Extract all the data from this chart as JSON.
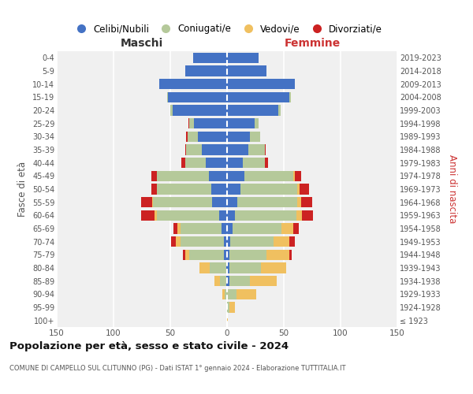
{
  "age_groups": [
    "100+",
    "95-99",
    "90-94",
    "85-89",
    "80-84",
    "75-79",
    "70-74",
    "65-69",
    "60-64",
    "55-59",
    "50-54",
    "45-49",
    "40-44",
    "35-39",
    "30-34",
    "25-29",
    "20-24",
    "15-19",
    "10-14",
    "5-9",
    "0-4"
  ],
  "birth_years": [
    "≤ 1923",
    "1924-1928",
    "1929-1933",
    "1934-1938",
    "1939-1943",
    "1944-1948",
    "1949-1953",
    "1954-1958",
    "1959-1963",
    "1964-1968",
    "1969-1973",
    "1974-1978",
    "1979-1983",
    "1984-1988",
    "1989-1993",
    "1994-1998",
    "1999-2003",
    "2004-2008",
    "2009-2013",
    "2014-2018",
    "2019-2023"
  ],
  "males": {
    "celibi": [
      0,
      0,
      0,
      1,
      1,
      3,
      3,
      5,
      7,
      13,
      14,
      16,
      19,
      22,
      26,
      29,
      48,
      52,
      60,
      37,
      30
    ],
    "coniugati": [
      0,
      0,
      2,
      5,
      14,
      30,
      38,
      36,
      55,
      52,
      48,
      46,
      18,
      14,
      9,
      4,
      2,
      1,
      0,
      0,
      0
    ],
    "vedovi": [
      0,
      0,
      2,
      5,
      9,
      4,
      4,
      3,
      2,
      1,
      0,
      0,
      0,
      0,
      0,
      0,
      0,
      0,
      0,
      0,
      0
    ],
    "divorziati": [
      0,
      0,
      0,
      0,
      0,
      2,
      4,
      3,
      12,
      10,
      5,
      5,
      3,
      1,
      1,
      1,
      0,
      0,
      0,
      0,
      0
    ]
  },
  "females": {
    "nubili": [
      0,
      0,
      0,
      2,
      2,
      2,
      3,
      5,
      7,
      9,
      12,
      15,
      14,
      19,
      20,
      24,
      45,
      55,
      60,
      35,
      28
    ],
    "coniugate": [
      0,
      2,
      8,
      18,
      28,
      33,
      38,
      43,
      54,
      53,
      50,
      43,
      19,
      14,
      9,
      4,
      2,
      1,
      0,
      0,
      0
    ],
    "vedove": [
      1,
      5,
      18,
      24,
      22,
      20,
      14,
      10,
      5,
      3,
      2,
      2,
      0,
      0,
      0,
      0,
      0,
      0,
      0,
      0,
      0
    ],
    "divorziate": [
      0,
      0,
      0,
      0,
      0,
      2,
      5,
      5,
      10,
      10,
      8,
      5,
      3,
      1,
      0,
      0,
      0,
      0,
      0,
      0,
      0
    ]
  },
  "colors": {
    "celibi": "#4472c4",
    "coniugati": "#b5c99a",
    "vedovi": "#f0c060",
    "divorziati": "#cc2222"
  },
  "xlim": 150,
  "title": "Popolazione per età, sesso e stato civile - 2024",
  "subtitle": "COMUNE DI CAMPELLO SUL CLITUNNO (PG) - Dati ISTAT 1° gennaio 2024 - Elaborazione TUTTITALIA.IT",
  "ylabel_left": "Fasce di età",
  "ylabel_right": "Anni di nascita",
  "xlabel_left": "Maschi",
  "xlabel_right": "Femmine",
  "legend_labels": [
    "Celibi/Nubili",
    "Coniugati/e",
    "Vedovi/e",
    "Divorziati/e"
  ]
}
